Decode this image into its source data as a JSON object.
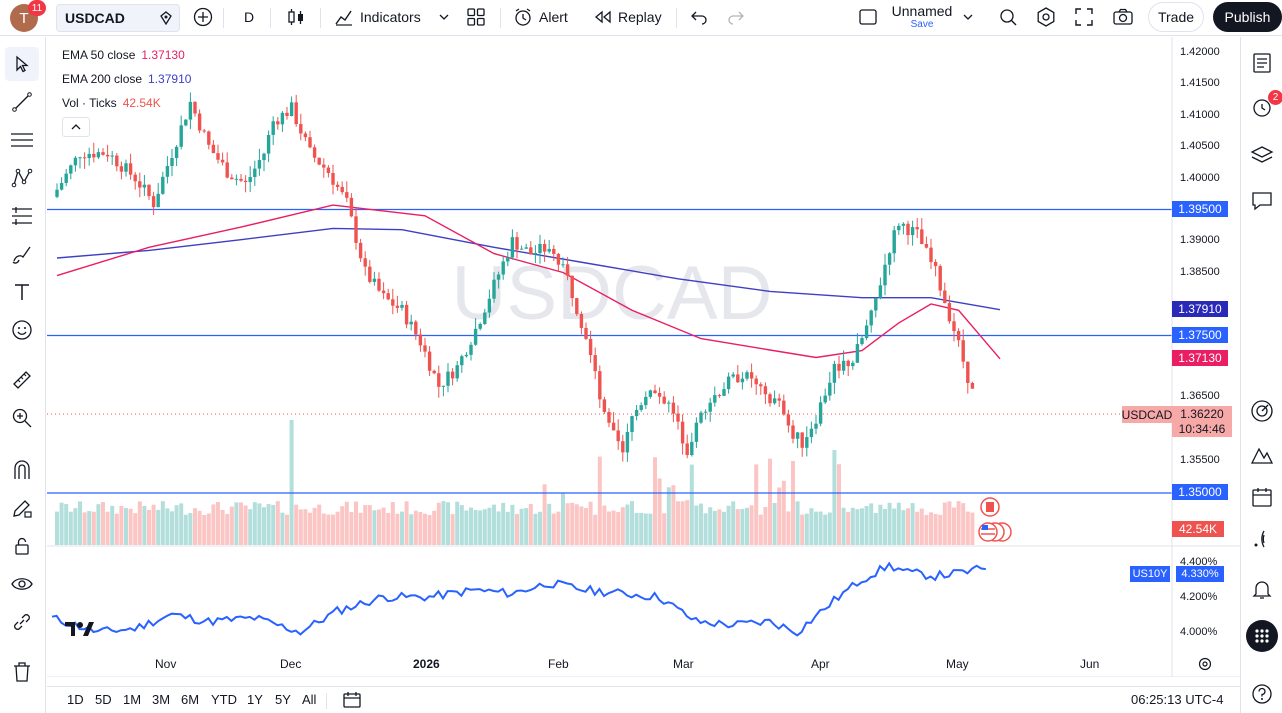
{
  "topbar": {
    "avatar_letter": "T",
    "notifications": "11",
    "symbol": "USDCAD",
    "interval": "D",
    "indicators_label": "Indicators",
    "alert_label": "Alert",
    "replay_label": "Replay",
    "layout_name": "Unnamed",
    "layout_status": "Save",
    "trade_label": "Trade",
    "publish_label": "Publish"
  },
  "legend": {
    "ema50_label": "EMA 50 close",
    "ema50_value": "1.37130",
    "ema200_label": "EMA 200 close",
    "ema200_value": "1.37910",
    "vol_label": "Vol · Ticks",
    "vol_value": "42.54K"
  },
  "watermark": "USDCAD",
  "price_axis": {
    "ticks": [
      "1.42000",
      "1.41500",
      "1.41000",
      "1.40500",
      "1.40000",
      "1.39000",
      "1.38500",
      "1.36500",
      "1.35500"
    ],
    "levels": {
      "l1": "1.39500",
      "ema200": "1.37910",
      "l2": "1.37500",
      "ema50": "1.37130",
      "l3": "1.35000"
    },
    "current_symbol": "USDCAD",
    "current_price": "1.36220",
    "countdown": "10:34:46",
    "volume": "42.54K",
    "us10y_label": "US10Y",
    "us10y_value": "4.330%",
    "us10y_ticks": [
      "4.400%",
      "4.200%",
      "4.000%"
    ]
  },
  "time_axis": [
    "Nov",
    "Dec",
    "2026",
    "Feb",
    "Mar",
    "Apr",
    "May",
    "Jun"
  ],
  "bottombar": {
    "ranges": [
      "1D",
      "5D",
      "1M",
      "3M",
      "6M",
      "YTD",
      "1Y",
      "5Y",
      "All"
    ],
    "clock": "06:25:13 UTC-4"
  },
  "right_toolbar": {
    "alert_count": "2"
  },
  "colors": {
    "up": "#26a69a",
    "down": "#ef5350",
    "ema50": "#e91e63",
    "ema200": "#3f3fc4",
    "level": "#2962ff",
    "us10y": "#2962ff"
  }
}
